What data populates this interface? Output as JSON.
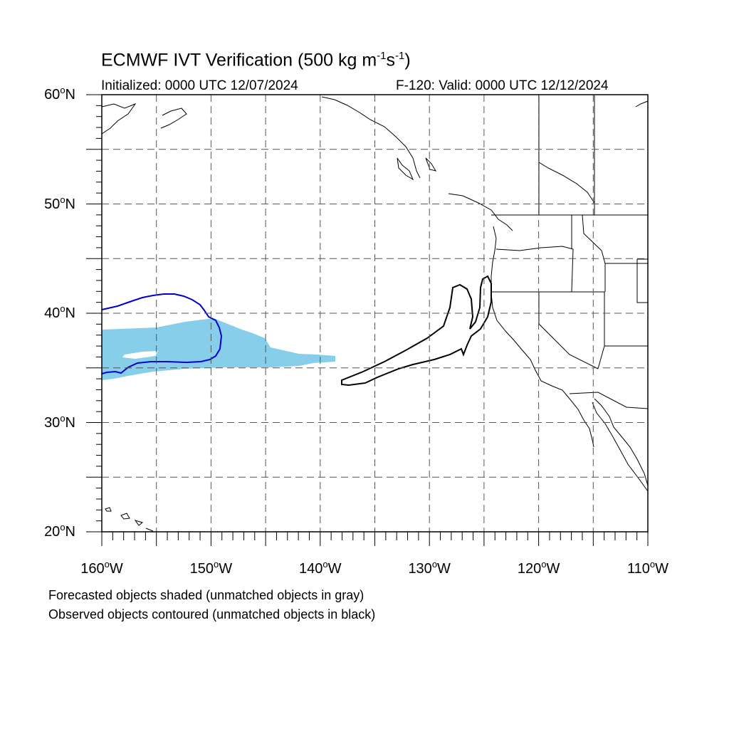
{
  "title": {
    "text": "ECMWF IVT Verification (500 kg m",
    "exp1": "-1",
    "mid": "s",
    "exp2": "-1",
    "close": ")"
  },
  "subtitle": {
    "initialized": "Initialized: 0000 UTC 12/07/2024",
    "valid": "F-120: Valid: 0000 UTC 12/12/2024"
  },
  "map": {
    "projection": "cylindrical equidistant",
    "lon_range": [
      -160,
      -110
    ],
    "lat_range": [
      20,
      60
    ],
    "grid": "dashed every 5 degrees",
    "lat_labels": [
      {
        "value": 60,
        "deg": "60",
        "hemi": "N"
      },
      {
        "value": 50,
        "deg": "50",
        "hemi": "N"
      },
      {
        "value": 40,
        "deg": "40",
        "hemi": "N"
      },
      {
        "value": 30,
        "deg": "30",
        "hemi": "N"
      },
      {
        "value": 20,
        "deg": "20",
        "hemi": "N"
      }
    ],
    "lon_labels": [
      {
        "value": -160,
        "deg": "160",
        "hemi": "W"
      },
      {
        "value": -150,
        "deg": "150",
        "hemi": "W"
      },
      {
        "value": -140,
        "deg": "140",
        "hemi": "W"
      },
      {
        "value": -130,
        "deg": "130",
        "hemi": "W"
      },
      {
        "value": -120,
        "deg": "120",
        "hemi": "W"
      },
      {
        "value": -110,
        "deg": "110",
        "hemi": "W"
      }
    ],
    "colors": {
      "forecast_matched_fill": "#87ceeb",
      "observed_matched_contour": "#0000cd",
      "observed_unmatched_contour": "#000000",
      "coastline": "#000000",
      "grid": "#555555"
    }
  },
  "captions": {
    "line1": "Forecasted objects shaded (unmatched objects in gray)",
    "line2": "Observed objects contoured (unmatched objects in black)"
  }
}
